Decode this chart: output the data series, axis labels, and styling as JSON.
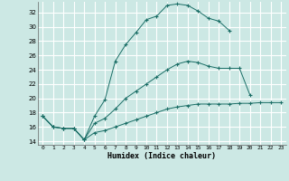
{
  "xlabel": "Humidex (Indice chaleur)",
  "bg_color": "#cce8e4",
  "grid_color": "#ffffff",
  "line_color": "#1a6e66",
  "ylim": [
    13.5,
    33.5
  ],
  "xlim": [
    -0.5,
    23.5
  ],
  "yticks": [
    14,
    16,
    18,
    20,
    22,
    24,
    26,
    28,
    30,
    32
  ],
  "xticks": [
    0,
    1,
    2,
    3,
    4,
    5,
    6,
    7,
    8,
    9,
    10,
    11,
    12,
    13,
    14,
    15,
    16,
    17,
    18,
    19,
    20,
    21,
    22,
    23
  ],
  "line1_x": [
    0,
    1,
    2,
    3,
    4,
    5,
    6,
    7,
    8,
    9,
    10,
    11,
    12,
    13,
    14,
    15,
    16,
    17,
    18
  ],
  "line1_y": [
    17.5,
    16.0,
    15.8,
    15.8,
    14.2,
    17.5,
    19.8,
    25.2,
    27.5,
    29.2,
    31.0,
    31.5,
    33.0,
    33.2,
    33.0,
    32.2,
    31.2,
    30.8,
    29.5
  ],
  "line2_x": [
    0,
    1,
    2,
    3,
    4,
    5,
    6,
    7,
    8,
    9,
    10,
    11,
    12,
    13,
    14,
    15,
    16,
    17,
    18,
    19,
    20
  ],
  "line2_y": [
    17.5,
    16.0,
    15.8,
    15.8,
    14.2,
    16.5,
    17.2,
    18.5,
    20.0,
    21.0,
    22.0,
    23.0,
    24.0,
    24.8,
    25.2,
    25.0,
    24.5,
    24.2,
    24.2,
    24.2,
    20.5
  ],
  "line3_x": [
    0,
    1,
    2,
    3,
    4,
    5,
    6,
    7,
    8,
    9,
    10,
    11,
    12,
    13,
    14,
    15,
    16,
    17,
    18,
    19,
    20,
    21,
    22,
    23
  ],
  "line3_y": [
    17.5,
    16.0,
    15.8,
    15.8,
    14.2,
    15.2,
    15.5,
    16.0,
    16.5,
    17.0,
    17.5,
    18.0,
    18.5,
    18.8,
    19.0,
    19.2,
    19.2,
    19.2,
    19.2,
    19.3,
    19.3,
    19.4,
    19.4,
    19.4
  ]
}
